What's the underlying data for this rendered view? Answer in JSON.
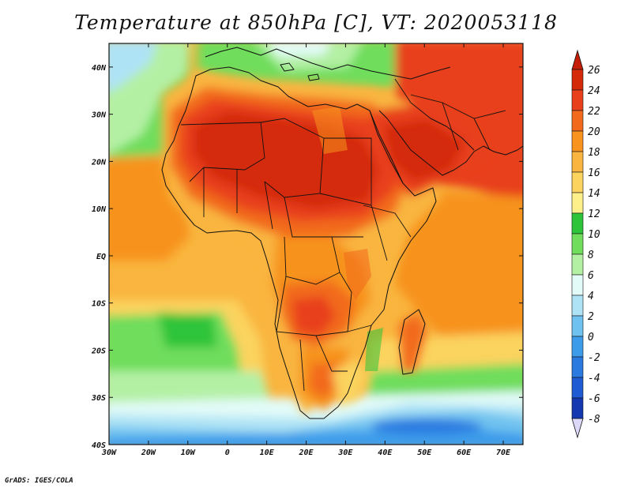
{
  "title": "Temperature at 850hPa [C], VT: 2020053118",
  "footer": "GrADS: IGES/COLA",
  "map": {
    "variable": "Temperature at 850hPa",
    "units": "C",
    "valid_time": "2020053118",
    "lon_range": [
      -30,
      75
    ],
    "lat_range": [
      -40,
      45
    ],
    "lon_ticks": [
      {
        "value": -30,
        "label": "30W"
      },
      {
        "value": -20,
        "label": "20W"
      },
      {
        "value": -10,
        "label": "10W"
      },
      {
        "value": 0,
        "label": "0"
      },
      {
        "value": 10,
        "label": "10E"
      },
      {
        "value": 20,
        "label": "20E"
      },
      {
        "value": 30,
        "label": "30E"
      },
      {
        "value": 40,
        "label": "40E"
      },
      {
        "value": 50,
        "label": "50E"
      },
      {
        "value": 60,
        "label": "60E"
      },
      {
        "value": 70,
        "label": "70E"
      }
    ],
    "lat_ticks": [
      {
        "value": 40,
        "label": "40N"
      },
      {
        "value": 30,
        "label": "30N"
      },
      {
        "value": 20,
        "label": "20N"
      },
      {
        "value": 10,
        "label": "10N"
      },
      {
        "value": 0,
        "label": "EQ"
      },
      {
        "value": -10,
        "label": "10S"
      },
      {
        "value": -20,
        "label": "20S"
      },
      {
        "value": -30,
        "label": "30S"
      },
      {
        "value": -40,
        "label": "40S"
      }
    ]
  },
  "colorbar": {
    "levels": [
      {
        "label": "26",
        "color": "#d42a0a"
      },
      {
        "label": "24",
        "color": "#e8401a"
      },
      {
        "label": "22",
        "color": "#f26a1c"
      },
      {
        "label": "20",
        "color": "#f7931e"
      },
      {
        "label": "18",
        "color": "#f9b53f"
      },
      {
        "label": "16",
        "color": "#fbd35e"
      },
      {
        "label": "14",
        "color": "#fdf08a"
      },
      {
        "label": "12",
        "color": "#2ec43a"
      },
      {
        "label": "10",
        "color": "#70dd5c"
      },
      {
        "label": "8",
        "color": "#b4f0a4"
      },
      {
        "label": "6",
        "color": "#e2fbf8"
      },
      {
        "label": "4",
        "color": "#aee3f5"
      },
      {
        "label": "2",
        "color": "#6fc2f0"
      },
      {
        "label": "0",
        "color": "#3d9cea"
      },
      {
        "label": "-2",
        "color": "#2a7ae0"
      },
      {
        "label": "-4",
        "color": "#1f5bd2"
      },
      {
        "label": "-6",
        "color": "#1438b0"
      },
      {
        "label": "-8",
        "color": "#0a1d78"
      }
    ],
    "top_arrow_color": "#c41e06",
    "bottom_arrow_color": "#dcd8f8"
  }
}
